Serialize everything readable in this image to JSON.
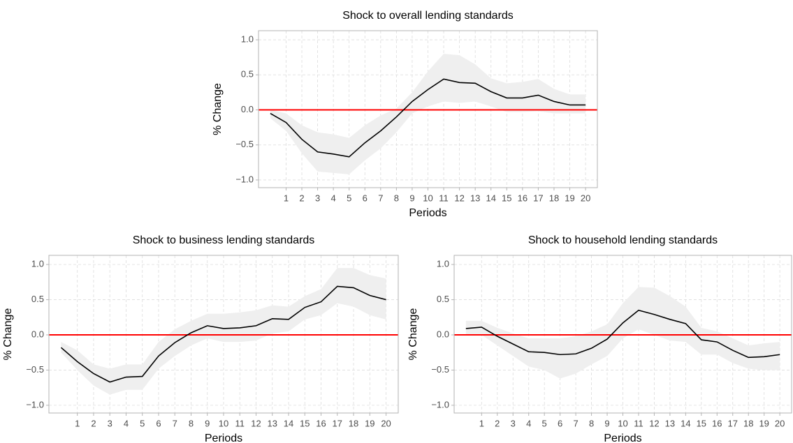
{
  "chart_data": [
    {
      "type": "line",
      "title": "Shock to overall lending standards",
      "x_label": "Periods",
      "y_label": "% Change",
      "x": [
        0,
        1,
        2,
        3,
        4,
        5,
        6,
        7,
        8,
        9,
        10,
        11,
        12,
        13,
        14,
        15,
        16,
        17,
        18,
        19,
        20
      ],
      "values": [
        -0.05,
        -0.18,
        -0.42,
        -0.6,
        -0.63,
        -0.67,
        -0.47,
        -0.3,
        -0.1,
        0.12,
        0.29,
        0.44,
        0.39,
        0.38,
        0.26,
        0.17,
        0.17,
        0.21,
        0.12,
        0.07,
        0.07
      ],
      "upper": [
        0.0,
        -0.05,
        -0.22,
        -0.32,
        -0.35,
        -0.4,
        -0.22,
        -0.08,
        0.02,
        0.25,
        0.55,
        0.8,
        0.78,
        0.65,
        0.45,
        0.38,
        0.4,
        0.44,
        0.3,
        0.22,
        0.22
      ],
      "lower": [
        -0.12,
        -0.3,
        -0.62,
        -0.88,
        -0.9,
        -0.92,
        -0.72,
        -0.55,
        -0.32,
        -0.05,
        0.05,
        0.12,
        0.1,
        0.12,
        0.05,
        -0.03,
        -0.03,
        -0.02,
        -0.05,
        -0.05,
        -0.05
      ],
      "color": "#000000",
      "band_color": "#efefef",
      "hline": 0,
      "hline_color": "#ff0000",
      "xlim": [
        -0.75,
        20.75
      ],
      "xticks": [
        1,
        2,
        3,
        4,
        5,
        6,
        7,
        8,
        9,
        10,
        11,
        12,
        13,
        14,
        15,
        16,
        17,
        18,
        19,
        20
      ],
      "ylim": [
        -1.11,
        1.13
      ],
      "yticks": [
        {
          "value": -1,
          "label": "−1.0"
        },
        {
          "value": -0.5,
          "label": "−0.5"
        },
        {
          "value": 0,
          "label": "0.0"
        },
        {
          "value": 0.5,
          "label": "0.5"
        },
        {
          "value": 1,
          "label": "1.0"
        }
      ],
      "grid": true
    },
    {
      "type": "line",
      "title": "Shock to business lending standards",
      "x_label": "Periods",
      "y_label": "% Change",
      "x": [
        0,
        1,
        2,
        3,
        4,
        5,
        6,
        7,
        8,
        9,
        10,
        11,
        12,
        13,
        14,
        15,
        16,
        17,
        18,
        19,
        20
      ],
      "values": [
        -0.18,
        -0.38,
        -0.55,
        -0.67,
        -0.6,
        -0.59,
        -0.3,
        -0.11,
        0.03,
        0.13,
        0.09,
        0.1,
        0.13,
        0.23,
        0.22,
        0.39,
        0.47,
        0.69,
        0.67,
        0.56,
        0.5
      ],
      "upper": [
        -0.1,
        -0.22,
        -0.42,
        -0.48,
        -0.42,
        -0.42,
        -0.1,
        0.08,
        0.2,
        0.3,
        0.3,
        0.32,
        0.35,
        0.42,
        0.4,
        0.55,
        0.65,
        0.95,
        0.95,
        0.85,
        0.8
      ],
      "lower": [
        -0.25,
        -0.5,
        -0.72,
        -0.85,
        -0.78,
        -0.78,
        -0.48,
        -0.3,
        -0.15,
        -0.05,
        -0.1,
        -0.1,
        -0.08,
        0.02,
        0.05,
        0.22,
        0.28,
        0.45,
        0.4,
        0.28,
        0.22
      ],
      "color": "#000000",
      "band_color": "#efefef",
      "hline": 0,
      "hline_color": "#ff0000",
      "xlim": [
        -0.75,
        20.75
      ],
      "xticks": [
        1,
        2,
        3,
        4,
        5,
        6,
        7,
        8,
        9,
        10,
        11,
        12,
        13,
        14,
        15,
        16,
        17,
        18,
        19,
        20
      ],
      "ylim": [
        -1.11,
        1.13
      ],
      "yticks": [
        {
          "value": -1,
          "label": "−1.0"
        },
        {
          "value": -0.5,
          "label": "−0.5"
        },
        {
          "value": 0,
          "label": "0.0"
        },
        {
          "value": 0.5,
          "label": "0.5"
        },
        {
          "value": 1,
          "label": "1.0"
        }
      ],
      "grid": true
    },
    {
      "type": "line",
      "title": "Shock to household lending standards",
      "x_label": "Periods",
      "y_label": "% Change",
      "x": [
        0,
        1,
        2,
        3,
        4,
        5,
        6,
        7,
        8,
        9,
        10,
        11,
        12,
        13,
        14,
        15,
        16,
        17,
        18,
        19,
        20
      ],
      "values": [
        0.09,
        0.11,
        -0.02,
        -0.13,
        -0.24,
        -0.25,
        -0.28,
        -0.27,
        -0.19,
        -0.06,
        0.17,
        0.35,
        0.29,
        0.22,
        0.16,
        -0.07,
        -0.1,
        -0.22,
        -0.32,
        -0.31,
        -0.28
      ],
      "upper": [
        0.2,
        0.2,
        0.1,
        0.02,
        -0.05,
        -0.05,
        -0.05,
        -0.02,
        0.05,
        0.15,
        0.45,
        0.68,
        0.67,
        0.55,
        0.4,
        0.1,
        0.05,
        -0.05,
        -0.15,
        -0.12,
        -0.1
      ],
      "lower": [
        0.0,
        0.0,
        -0.15,
        -0.3,
        -0.45,
        -0.5,
        -0.62,
        -0.55,
        -0.42,
        -0.3,
        -0.05,
        0.08,
        0.0,
        -0.08,
        -0.1,
        -0.28,
        -0.28,
        -0.4,
        -0.48,
        -0.5,
        -0.5
      ],
      "color": "#000000",
      "band_color": "#efefef",
      "hline": 0,
      "hline_color": "#ff0000",
      "xlim": [
        -0.75,
        20.75
      ],
      "xticks": [
        1,
        2,
        3,
        4,
        5,
        6,
        7,
        8,
        9,
        10,
        11,
        12,
        13,
        14,
        15,
        16,
        17,
        18,
        19,
        20
      ],
      "ylim": [
        -1.11,
        1.13
      ],
      "yticks": [
        {
          "value": -1,
          "label": "−1.0"
        },
        {
          "value": -0.5,
          "label": "−0.5"
        },
        {
          "value": 0,
          "label": "0.0"
        },
        {
          "value": 0.5,
          "label": "0.5"
        },
        {
          "value": 1,
          "label": "1.0"
        }
      ],
      "grid": true
    }
  ]
}
